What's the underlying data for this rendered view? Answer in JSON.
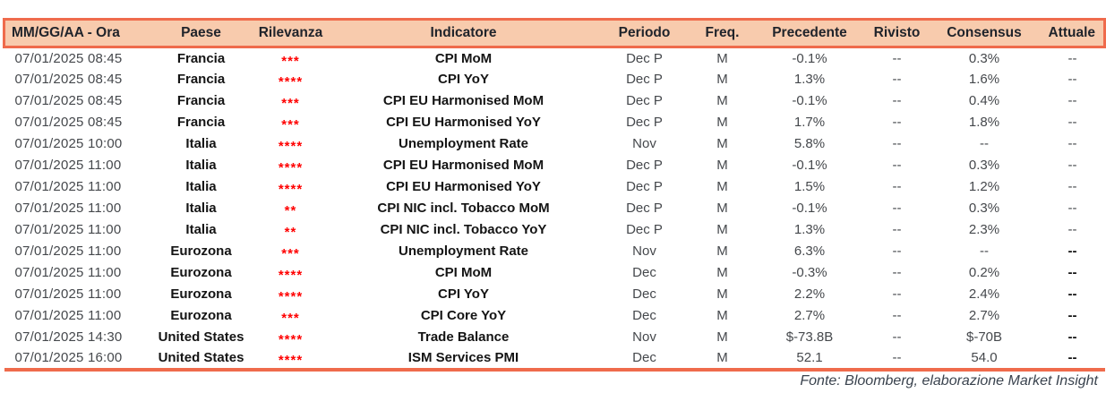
{
  "colors": {
    "header_bg": "#F8CBAD",
    "border": "#EF6B4C",
    "relevance_stars": "#FF0000"
  },
  "table": {
    "columns": [
      {
        "key": "datetime",
        "label": "MM/GG/AA - Ora"
      },
      {
        "key": "country",
        "label": "Paese"
      },
      {
        "key": "relevance",
        "label": "Rilevanza"
      },
      {
        "key": "indicator",
        "label": "Indicatore"
      },
      {
        "key": "period",
        "label": "Periodo"
      },
      {
        "key": "freq",
        "label": "Freq."
      },
      {
        "key": "previous",
        "label": "Precedente"
      },
      {
        "key": "revised",
        "label": "Rivisto"
      },
      {
        "key": "consensus",
        "label": "Consensus"
      },
      {
        "key": "actual",
        "label": "Attuale"
      }
    ],
    "rows": [
      {
        "datetime": "07/01/2025 08:45",
        "country": "Francia",
        "relevance": "***",
        "indicator": "CPI MoM",
        "period": "Dec P",
        "freq": "M",
        "previous": "-0.1%",
        "revised": "--",
        "consensus": "0.3%",
        "actual": "--",
        "actual_bold": false
      },
      {
        "datetime": "07/01/2025 08:45",
        "country": "Francia",
        "relevance": "****",
        "indicator": "CPI YoY",
        "period": "Dec P",
        "freq": "M",
        "previous": "1.3%",
        "revised": "--",
        "consensus": "1.6%",
        "actual": "--",
        "actual_bold": false
      },
      {
        "datetime": "07/01/2025 08:45",
        "country": "Francia",
        "relevance": "***",
        "indicator": "CPI EU Harmonised MoM",
        "period": "Dec P",
        "freq": "M",
        "previous": "-0.1%",
        "revised": "--",
        "consensus": "0.4%",
        "actual": "--",
        "actual_bold": false
      },
      {
        "datetime": "07/01/2025 08:45",
        "country": "Francia",
        "relevance": "***",
        "indicator": "CPI EU Harmonised YoY",
        "period": "Dec P",
        "freq": "M",
        "previous": "1.7%",
        "revised": "--",
        "consensus": "1.8%",
        "actual": "--",
        "actual_bold": false
      },
      {
        "datetime": "07/01/2025 10:00",
        "country": "Italia",
        "relevance": "****",
        "indicator": "Unemployment Rate",
        "period": "Nov",
        "freq": "M",
        "previous": "5.8%",
        "revised": "--",
        "consensus": "--",
        "actual": "--",
        "actual_bold": false
      },
      {
        "datetime": "07/01/2025 11:00",
        "country": "Italia",
        "relevance": "****",
        "indicator": "CPI EU Harmonised MoM",
        "period": "Dec P",
        "freq": "M",
        "previous": "-0.1%",
        "revised": "--",
        "consensus": "0.3%",
        "actual": "--",
        "actual_bold": false
      },
      {
        "datetime": "07/01/2025 11:00",
        "country": "Italia",
        "relevance": "****",
        "indicator": "CPI EU Harmonised YoY",
        "period": "Dec P",
        "freq": "M",
        "previous": "1.5%",
        "revised": "--",
        "consensus": "1.2%",
        "actual": "--",
        "actual_bold": false
      },
      {
        "datetime": "07/01/2025 11:00",
        "country": "Italia",
        "relevance": "**",
        "indicator": "CPI NIC incl. Tobacco MoM",
        "period": "Dec P",
        "freq": "M",
        "previous": "-0.1%",
        "revised": "--",
        "consensus": "0.3%",
        "actual": "--",
        "actual_bold": false
      },
      {
        "datetime": "07/01/2025 11:00",
        "country": "Italia",
        "relevance": "**",
        "indicator": "CPI NIC incl. Tobacco YoY",
        "period": "Dec P",
        "freq": "M",
        "previous": "1.3%",
        "revised": "--",
        "consensus": "2.3%",
        "actual": "--",
        "actual_bold": false
      },
      {
        "datetime": "07/01/2025 11:00",
        "country": "Eurozona",
        "relevance": "***",
        "indicator": "Unemployment Rate",
        "period": "Nov",
        "freq": "M",
        "previous": "6.3%",
        "revised": "--",
        "consensus": "--",
        "actual": "--",
        "actual_bold": true
      },
      {
        "datetime": "07/01/2025 11:00",
        "country": "Eurozona",
        "relevance": "****",
        "indicator": "CPI MoM",
        "period": "Dec",
        "freq": "M",
        "previous": "-0.3%",
        "revised": "--",
        "consensus": "0.2%",
        "actual": "--",
        "actual_bold": true
      },
      {
        "datetime": "07/01/2025 11:00",
        "country": "Eurozona",
        "relevance": "****",
        "indicator": "CPI YoY",
        "period": "Dec",
        "freq": "M",
        "previous": "2.2%",
        "revised": "--",
        "consensus": "2.4%",
        "actual": "--",
        "actual_bold": true
      },
      {
        "datetime": "07/01/2025 11:00",
        "country": "Eurozona",
        "relevance": "***",
        "indicator": "CPI Core YoY",
        "period": "Dec",
        "freq": "M",
        "previous": "2.7%",
        "revised": "--",
        "consensus": "2.7%",
        "actual": "--",
        "actual_bold": true
      },
      {
        "datetime": "07/01/2025 14:30",
        "country": "United States",
        "relevance": "****",
        "indicator": "Trade Balance",
        "period": "Nov",
        "freq": "M",
        "previous": "$-73.8B",
        "revised": "--",
        "consensus": "$-70B",
        "actual": "--",
        "actual_bold": true
      },
      {
        "datetime": "07/01/2025 16:00",
        "country": "United States",
        "relevance": "****",
        "indicator": "ISM Services PMI",
        "period": "Dec",
        "freq": "M",
        "previous": "52.1",
        "revised": "--",
        "consensus": "54.0",
        "actual": "--",
        "actual_bold": true
      }
    ]
  },
  "footer": {
    "source": "Fonte: Bloomberg, elaborazione Market Insight"
  }
}
